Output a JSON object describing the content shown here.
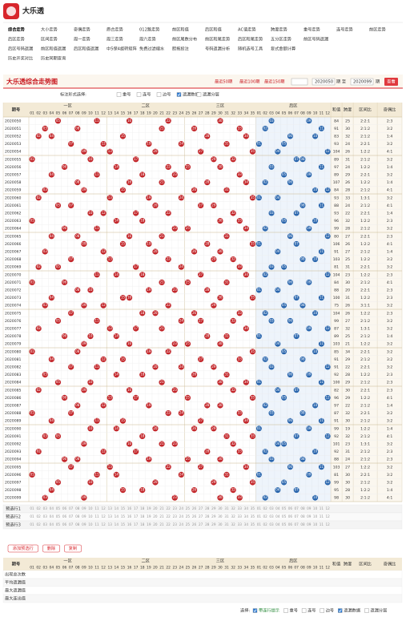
{
  "site_name": "大乐透",
  "nav": [
    [
      "综合走势",
      "大小走势",
      "奇偶走势",
      "质合走势",
      "012路走势",
      "前区和值",
      "后区和值",
      "AC值走势",
      "跨度走势",
      "重号走势",
      "连号走势",
      "前区走势"
    ],
    [
      "后区走势",
      "区间走势",
      "周一走势",
      "周三走势",
      "周六走势",
      "前区尾数分布",
      "前区和尾走势",
      "后区和尾走势",
      "五分区走势",
      "前区号码遗漏"
    ],
    [
      "后区号码遗漏",
      "前区和值遗漏",
      "后区和值遗漏",
      "中5保4旋转矩阵",
      "免费过滤缩水",
      "胆拖投注",
      "号码遗漏分析",
      "随机选号工具",
      "复式金额计算"
    ],
    [
      "历史开奖对比",
      "历史同期查询"
    ]
  ],
  "title_bar": {
    "title": "大乐透综合走势图",
    "recent": [
      "最近50期",
      "最近100期",
      "最近150期"
    ],
    "start": "2020050",
    "to": "期 至",
    "end": "2020099",
    "period": "期",
    "button": "查看"
  },
  "options": {
    "label": "标注形式选择:",
    "items": [
      {
        "label": "重号",
        "checked": false
      },
      {
        "label": "连号",
        "checked": false
      },
      {
        "label": "边号",
        "checked": false
      },
      {
        "label": "遗漏数据",
        "checked": true
      },
      {
        "label": "遗漏分层",
        "checked": false
      }
    ]
  },
  "table": {
    "headers": {
      "issue": "期号",
      "zones": [
        "一区",
        "二区",
        "三区",
        "后区"
      ],
      "stats": [
        "和值",
        "跨度",
        "区间比",
        "奇偶比"
      ]
    },
    "front_numbers": [
      "01",
      "02",
      "03",
      "04",
      "05",
      "06",
      "07",
      "08",
      "09",
      "10",
      "11",
      "12",
      "13",
      "14",
      "15",
      "16",
      "17",
      "18",
      "19",
      "20",
      "21",
      "22",
      "23",
      "24",
      "25",
      "26",
      "27",
      "28",
      "29",
      "30",
      "31",
      "32",
      "33",
      "34",
      "35"
    ],
    "back_numbers": [
      "01",
      "02",
      "03",
      "04",
      "05",
      "06",
      "07",
      "08",
      "09",
      "10",
      "11",
      "12"
    ],
    "rows": [
      {
        "issue": "2020050",
        "front": [
          "05",
          "11",
          "16",
          "22",
          "30"
        ],
        "back": [
          "03",
          "09"
        ],
        "sum": 84,
        "span": 25,
        "zone": "2:2:1",
        "oe": "2:3"
      },
      {
        "issue": "2020051",
        "front": [
          "03",
          "08",
          "21",
          "26",
          "33"
        ],
        "back": [
          "02",
          "11"
        ],
        "sum": 91,
        "span": 30,
        "zone": "2:1:2",
        "oe": "3:2"
      },
      {
        "issue": "2020052",
        "front": [
          "02",
          "04",
          "15",
          "28",
          "34"
        ],
        "back": [
          "06",
          "10"
        ],
        "sum": 83,
        "span": 32,
        "zone": "2:1:2",
        "oe": "1:4"
      },
      {
        "issue": "2020053",
        "front": [
          "07",
          "12",
          "19",
          "24",
          "31"
        ],
        "back": [
          "01",
          "05"
        ],
        "sum": 93,
        "span": 24,
        "zone": "2:2:1",
        "oe": "3:2"
      },
      {
        "issue": "2020054",
        "front": [
          "09",
          "13",
          "20",
          "27",
          "35"
        ],
        "back": [
          "04",
          "12"
        ],
        "sum": 104,
        "span": 26,
        "zone": "1:2:2",
        "oe": "4:1"
      },
      {
        "issue": "2020055",
        "front": [
          "01",
          "10",
          "17",
          "29",
          "32"
        ],
        "back": [
          "07",
          "08"
        ],
        "sum": 89,
        "span": 31,
        "zone": "2:1:2",
        "oe": "3:2"
      },
      {
        "issue": "2020056",
        "front": [
          "06",
          "14",
          "22",
          "25",
          "30"
        ],
        "back": [
          "03",
          "11"
        ],
        "sum": 97,
        "span": 24,
        "zone": "1:2:2",
        "oe": "1:4"
      },
      {
        "issue": "2020057",
        "front": [
          "04",
          "11",
          "18",
          "23",
          "33"
        ],
        "back": [
          "05",
          "09"
        ],
        "sum": 89,
        "span": 29,
        "zone": "2:2:1",
        "oe": "3:2"
      },
      {
        "issue": "2020058",
        "front": [
          "08",
          "16",
          "21",
          "28",
          "34"
        ],
        "back": [
          "02",
          "06"
        ],
        "sum": 107,
        "span": 26,
        "zone": "1:2:2",
        "oe": "1:4"
      },
      {
        "issue": "2020059",
        "front": [
          "03",
          "09",
          "15",
          "26",
          "31"
        ],
        "back": [
          "10",
          "12"
        ],
        "sum": 84,
        "span": 28,
        "zone": "2:1:2",
        "oe": "4:1"
      },
      {
        "issue": "2020060",
        "front": [
          "02",
          "13",
          "19",
          "24",
          "35"
        ],
        "back": [
          "01",
          "04"
        ],
        "sum": 93,
        "span": 33,
        "zone": "1:3:1",
        "oe": "3:2"
      },
      {
        "issue": "2020061",
        "front": [
          "05",
          "07",
          "20",
          "27",
          "29"
        ],
        "back": [
          "08",
          "11"
        ],
        "sum": 88,
        "span": 24,
        "zone": "2:1:2",
        "oe": "4:1"
      },
      {
        "issue": "2020062",
        "front": [
          "10",
          "12",
          "17",
          "22",
          "32"
        ],
        "back": [
          "03",
          "07"
        ],
        "sum": 93,
        "span": 22,
        "zone": "2:2:1",
        "oe": "1:4"
      },
      {
        "issue": "2020063",
        "front": [
          "01",
          "14",
          "18",
          "30",
          "33"
        ],
        "back": [
          "05",
          "10"
        ],
        "sum": 96,
        "span": 32,
        "zone": "1:2:2",
        "oe": "2:3"
      },
      {
        "issue": "2020064",
        "front": [
          "06",
          "11",
          "23",
          "25",
          "34"
        ],
        "back": [
          "02",
          "09"
        ],
        "sum": 99,
        "span": 28,
        "zone": "2:1:2",
        "oe": "3:2"
      },
      {
        "issue": "2020065",
        "front": [
          "04",
          "08",
          "16",
          "21",
          "31"
        ],
        "back": [
          "06",
          "12"
        ],
        "sum": 80,
        "span": 27,
        "zone": "2:2:1",
        "oe": "2:3"
      },
      {
        "issue": "2020066",
        "front": [
          "09",
          "15",
          "19",
          "28",
          "35"
        ],
        "back": [
          "01",
          "07"
        ],
        "sum": 106,
        "span": 26,
        "zone": "1:2:2",
        "oe": "4:1"
      },
      {
        "issue": "2020067",
        "front": [
          "03",
          "12",
          "20",
          "26",
          "30"
        ],
        "back": [
          "04",
          "11"
        ],
        "sum": 91,
        "span": 27,
        "zone": "2:1:2",
        "oe": "1:4"
      },
      {
        "issue": "2020068",
        "front": [
          "07",
          "13",
          "22",
          "29",
          "32"
        ],
        "back": [
          "08",
          "10"
        ],
        "sum": 103,
        "span": 25,
        "zone": "1:2:2",
        "oe": "3:2"
      },
      {
        "issue": "2020069",
        "front": [
          "02",
          "05",
          "17",
          "24",
          "33"
        ],
        "back": [
          "03",
          "05"
        ],
        "sum": 81,
        "span": 31,
        "zone": "2:2:1",
        "oe": "3:2"
      },
      {
        "issue": "2020070",
        "front": [
          "11",
          "14",
          "18",
          "27",
          "34"
        ],
        "back": [
          "02",
          "12"
        ],
        "sum": 104,
        "span": 23,
        "zone": "1:2:2",
        "oe": "2:3"
      },
      {
        "issue": "2020071",
        "front": [
          "01",
          "06",
          "21",
          "25",
          "31"
        ],
        "back": [
          "06",
          "09"
        ],
        "sum": 84,
        "span": 30,
        "zone": "2:1:2",
        "oe": "4:1"
      },
      {
        "issue": "2020072",
        "front": [
          "08",
          "10",
          "19",
          "23",
          "28"
        ],
        "back": [
          "01",
          "04"
        ],
        "sum": 88,
        "span": 20,
        "zone": "2:2:1",
        "oe": "2:3"
      },
      {
        "issue": "2020073",
        "front": [
          "04",
          "15",
          "16",
          "30",
          "35"
        ],
        "back": [
          "07",
          "11"
        ],
        "sum": 100,
        "span": 31,
        "zone": "1:2:2",
        "oe": "2:3"
      },
      {
        "issue": "2020074",
        "front": [
          "03",
          "09",
          "12",
          "22",
          "29"
        ],
        "back": [
          "05",
          "08"
        ],
        "sum": 75,
        "span": 26,
        "zone": "3:1:1",
        "oe": "3:2"
      },
      {
        "issue": "2020075",
        "front": [
          "07",
          "18",
          "20",
          "26",
          "33"
        ],
        "back": [
          "02",
          "10"
        ],
        "sum": 104,
        "span": 26,
        "zone": "1:2:2",
        "oe": "2:3"
      },
      {
        "issue": "2020076",
        "front": [
          "05",
          "11",
          "24",
          "27",
          "32"
        ],
        "back": [
          "03",
          "06"
        ],
        "sum": 99,
        "span": 27,
        "zone": "2:1:2",
        "oe": "3:2"
      },
      {
        "issue": "2020077",
        "front": [
          "02",
          "13",
          "17",
          "21",
          "34"
        ],
        "back": [
          "09",
          "12"
        ],
        "sum": 87,
        "span": 32,
        "zone": "1:3:1",
        "oe": "3:2"
      },
      {
        "issue": "2020078",
        "front": [
          "06",
          "10",
          "14",
          "28",
          "31"
        ],
        "back": [
          "01",
          "07"
        ],
        "sum": 89,
        "span": 25,
        "zone": "2:1:2",
        "oe": "1:4"
      },
      {
        "issue": "2020079",
        "front": [
          "09",
          "16",
          "23",
          "25",
          "30"
        ],
        "back": [
          "04",
          "11"
        ],
        "sum": 103,
        "span": 21,
        "zone": "1:2:2",
        "oe": "3:2"
      },
      {
        "issue": "2020080",
        "front": [
          "01",
          "08",
          "19",
          "22",
          "35"
        ],
        "back": [
          "05",
          "10"
        ],
        "sum": 85,
        "span": 34,
        "zone": "2:2:1",
        "oe": "3:2"
      },
      {
        "issue": "2020081",
        "front": [
          "04",
          "12",
          "15",
          "27",
          "33"
        ],
        "back": [
          "02",
          "08"
        ],
        "sum": 91,
        "span": 29,
        "zone": "2:1:2",
        "oe": "3:2"
      },
      {
        "issue": "2020082",
        "front": [
          "07",
          "11",
          "20",
          "24",
          "29"
        ],
        "back": [
          "03",
          "12"
        ],
        "sum": 91,
        "span": 22,
        "zone": "2:2:1",
        "oe": "3:2"
      },
      {
        "issue": "2020083",
        "front": [
          "03",
          "14",
          "18",
          "26",
          "31"
        ],
        "back": [
          "06",
          "09"
        ],
        "sum": 92,
        "span": 28,
        "zone": "1:2:2",
        "oe": "2:3"
      },
      {
        "issue": "2020084",
        "front": [
          "05",
          "10",
          "21",
          "30",
          "34"
        ],
        "back": [
          "01",
          "11"
        ],
        "sum": 100,
        "span": 29,
        "zone": "2:1:2",
        "oe": "2:3"
      },
      {
        "issue": "2020085",
        "front": [
          "02",
          "09",
          "16",
          "23",
          "32"
        ],
        "back": [
          "04",
          "07"
        ],
        "sum": 82,
        "span": 30,
        "zone": "2:2:1",
        "oe": "2:3"
      },
      {
        "issue": "2020086",
        "front": [
          "06",
          "13",
          "17",
          "25",
          "35"
        ],
        "back": [
          "05",
          "12"
        ],
        "sum": 96,
        "span": 29,
        "zone": "1:2:2",
        "oe": "4:1"
      },
      {
        "issue": "2020087",
        "front": [
          "08",
          "12",
          "19",
          "28",
          "30"
        ],
        "back": [
          "02",
          "10"
        ],
        "sum": 97,
        "span": 22,
        "zone": "2:1:2",
        "oe": "1:4"
      },
      {
        "issue": "2020088",
        "front": [
          "01",
          "07",
          "22",
          "24",
          "33"
        ],
        "back": [
          "03",
          "08"
        ],
        "sum": 87,
        "span": 32,
        "zone": "2:2:1",
        "oe": "3:2"
      },
      {
        "issue": "2020089",
        "front": [
          "04",
          "11",
          "15",
          "27",
          "34"
        ],
        "back": [
          "06",
          "11"
        ],
        "sum": 91,
        "span": 30,
        "zone": "2:1:2",
        "oe": "3:2"
      },
      {
        "issue": "2020090",
        "front": [
          "10",
          "14",
          "20",
          "26",
          "29"
        ],
        "back": [
          "01",
          "09"
        ],
        "sum": 99,
        "span": 19,
        "zone": "1:2:2",
        "oe": "1:4"
      },
      {
        "issue": "2020091",
        "front": [
          "03",
          "05",
          "18",
          "31",
          "35"
        ],
        "back": [
          "07",
          "12"
        ],
        "sum": 92,
        "span": 32,
        "zone": "2:1:2",
        "oe": "4:1"
      },
      {
        "issue": "2020092",
        "front": [
          "09",
          "16",
          "21",
          "23",
          "32"
        ],
        "back": [
          "04",
          "05"
        ],
        "sum": 101,
        "span": 23,
        "zone": "1:3:1",
        "oe": "3:2"
      },
      {
        "issue": "2020093",
        "front": [
          "02",
          "12",
          "17",
          "28",
          "33"
        ],
        "back": [
          "02",
          "10"
        ],
        "sum": 92,
        "span": 31,
        "zone": "2:1:2",
        "oe": "2:3"
      },
      {
        "issue": "2020094",
        "front": [
          "06",
          "08",
          "19",
          "25",
          "30"
        ],
        "back": [
          "03",
          "08"
        ],
        "sum": 88,
        "span": 24,
        "zone": "2:1:2",
        "oe": "2:3"
      },
      {
        "issue": "2020095",
        "front": [
          "07",
          "13",
          "22",
          "27",
          "34"
        ],
        "back": [
          "06",
          "11"
        ],
        "sum": 103,
        "span": 27,
        "zone": "1:2:2",
        "oe": "3:2"
      },
      {
        "issue": "2020096",
        "front": [
          "01",
          "11",
          "14",
          "24",
          "31"
        ],
        "back": [
          "01",
          "09"
        ],
        "sum": 81,
        "span": 30,
        "zone": "2:2:1",
        "oe": "3:2"
      },
      {
        "issue": "2020097",
        "front": [
          "05",
          "10",
          "20",
          "29",
          "35"
        ],
        "back": [
          "05",
          "12"
        ],
        "sum": 99,
        "span": 30,
        "zone": "2:1:2",
        "oe": "3:2"
      },
      {
        "issue": "2020098",
        "front": [
          "04",
          "15",
          "18",
          "26",
          "32"
        ],
        "back": [
          "04",
          "07"
        ],
        "sum": 95,
        "span": 28,
        "zone": "1:2:2",
        "oe": "1:4"
      },
      {
        "issue": "2020099",
        "front": [
          "03",
          "09",
          "23",
          "30",
          "33"
        ],
        "back": [
          "02",
          "10"
        ],
        "sum": 98,
        "span": 30,
        "zone": "2:1:2",
        "oe": "4:1"
      }
    ]
  },
  "preselect": [
    "预选行1",
    "预选行2",
    "预选行3"
  ],
  "buttons": [
    "添加预选行",
    "删除",
    "复制"
  ],
  "summary": {
    "rows": [
      "出现总次数",
      "平均遗漏值",
      "最大遗漏值",
      "最大连出值"
    ]
  },
  "footer": {
    "label": "选择:",
    "items": [
      {
        "label": "带连行提示",
        "checked": true
      },
      {
        "label": "重号",
        "checked": false
      },
      {
        "label": "连号",
        "checked": false
      },
      {
        "label": "边号",
        "checked": false
      },
      {
        "label": "遗漏数据",
        "checked": true
      },
      {
        "label": "遗漏分层",
        "checked": false
      }
    ]
  }
}
